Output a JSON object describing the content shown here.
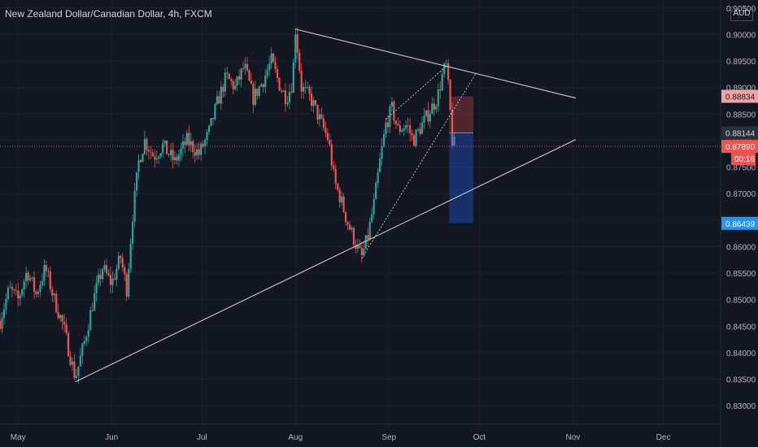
{
  "header": {
    "title": "New Zealand Dollar/Canadian Dollar, 4h, FXCM",
    "currency": "AUD"
  },
  "colors": {
    "background": "#131722",
    "up": "#26a69a",
    "down": "#ef5350",
    "trendline": "#c8c8c8",
    "stop_zone": "#ef5350",
    "target_zone": "#2962ff",
    "current_price_line": "#ef5350"
  },
  "chart_data": {
    "type": "candlestick",
    "title": "New Zealand Dollar/Canadian Dollar, 4h, FXCM",
    "x_ticks": [
      "May",
      "Jun",
      "Jul",
      "Aug",
      "Sep",
      "Oct",
      "Nov",
      "Dec"
    ],
    "y_ticks": [
      "0.90500",
      "0.90000",
      "0.89500",
      "0.89000",
      "0.88500",
      "0.88000",
      "0.87500",
      "0.87000",
      "0.86500",
      "0.86000",
      "0.85500",
      "0.85000",
      "0.84500",
      "0.84000",
      "0.83500",
      "0.83000"
    ],
    "ylim": [
      0.8265,
      0.9065
    ],
    "xlim": [
      "2021-04-25",
      "2021-12-20"
    ],
    "price_path": [
      [
        "2021-04-25",
        0.846
      ],
      [
        "2021-04-28",
        0.852
      ],
      [
        "2021-05-01",
        0.85
      ],
      [
        "2021-05-04",
        0.8555
      ],
      [
        "2021-05-07",
        0.851
      ],
      [
        "2021-05-10",
        0.856
      ],
      [
        "2021-05-13",
        0.85
      ],
      [
        "2021-05-16",
        0.845
      ],
      [
        "2021-05-18",
        0.84
      ],
      [
        "2021-05-20",
        0.8352
      ],
      [
        "2021-05-23",
        0.842
      ],
      [
        "2021-05-26",
        0.85
      ],
      [
        "2021-05-29",
        0.856
      ],
      [
        "2021-06-01",
        0.853
      ],
      [
        "2021-06-04",
        0.858
      ],
      [
        "2021-06-06",
        0.852
      ],
      [
        "2021-06-08",
        0.866
      ],
      [
        "2021-06-10",
        0.876
      ],
      [
        "2021-06-12",
        0.88
      ],
      [
        "2021-06-15",
        0.877
      ],
      [
        "2021-06-18",
        0.879
      ],
      [
        "2021-06-22",
        0.876
      ],
      [
        "2021-06-26",
        0.88
      ],
      [
        "2021-06-30",
        0.8775
      ],
      [
        "2021-07-03",
        0.881
      ],
      [
        "2021-07-06",
        0.887
      ],
      [
        "2021-07-09",
        0.892
      ],
      [
        "2021-07-12",
        0.89
      ],
      [
        "2021-07-15",
        0.894
      ],
      [
        "2021-07-18",
        0.888
      ],
      [
        "2021-07-21",
        0.891
      ],
      [
        "2021-07-24",
        0.895
      ],
      [
        "2021-07-27",
        0.89
      ],
      [
        "2021-07-29",
        0.888
      ],
      [
        "2021-07-31",
        0.891
      ],
      [
        "2021-08-01",
        0.901
      ],
      [
        "2021-08-03",
        0.89
      ],
      [
        "2021-08-06",
        0.888
      ],
      [
        "2021-08-09",
        0.884
      ],
      [
        "2021-08-12",
        0.88
      ],
      [
        "2021-08-14",
        0.872
      ],
      [
        "2021-08-16",
        0.869
      ],
      [
        "2021-08-18",
        0.865
      ],
      [
        "2021-08-20",
        0.862
      ],
      [
        "2021-08-22",
        0.859
      ],
      [
        "2021-08-23",
        0.858
      ],
      [
        "2021-08-25",
        0.862
      ],
      [
        "2021-08-27",
        0.868
      ],
      [
        "2021-08-29",
        0.876
      ],
      [
        "2021-08-31",
        0.883
      ],
      [
        "2021-09-02",
        0.886
      ],
      [
        "2021-09-04",
        0.882
      ],
      [
        "2021-09-07",
        0.883
      ],
      [
        "2021-09-09",
        0.88
      ],
      [
        "2021-09-11",
        0.882
      ],
      [
        "2021-09-14",
        0.885
      ],
      [
        "2021-09-17",
        0.888
      ],
      [
        "2021-09-19",
        0.893
      ],
      [
        "2021-09-20",
        0.894
      ],
      [
        "2021-09-21",
        0.888
      ],
      [
        "2021-09-22",
        0.88
      ],
      [
        "2021-09-23",
        0.8789
      ]
    ],
    "trendlines": [
      {
        "style": "solid",
        "from": [
          "2021-08-01",
          0.901
        ],
        "to": [
          "2021-11-02",
          0.888
        ]
      },
      {
        "style": "solid",
        "from": [
          "2021-05-20",
          0.8345
        ],
        "to": [
          "2021-11-02",
          0.8802
        ]
      },
      {
        "style": "dotted",
        "from": [
          "2021-08-23",
          0.8578
        ],
        "to": [
          "2021-09-30",
          0.8928
        ]
      },
      {
        "style": "dotted",
        "from": [
          "2021-08-31",
          0.884
        ],
        "to": [
          "2021-09-20",
          0.894
        ]
      }
    ],
    "position": {
      "type": "short",
      "entry": 0.88144,
      "stop": 0.88834,
      "target": 0.86439,
      "start": "2021-09-21",
      "end": "2021-09-29"
    },
    "price_labels": [
      {
        "value": 0.88834,
        "text": "0.88834",
        "role": "stop"
      },
      {
        "value": 0.88144,
        "text": "0.88144",
        "role": "entry"
      },
      {
        "value": 0.8789,
        "text": "0.87890",
        "role": "current"
      },
      {
        "value": 0.86439,
        "text": "0.86439",
        "role": "target"
      }
    ],
    "countdown": "00:16",
    "current_price": 0.8789
  }
}
